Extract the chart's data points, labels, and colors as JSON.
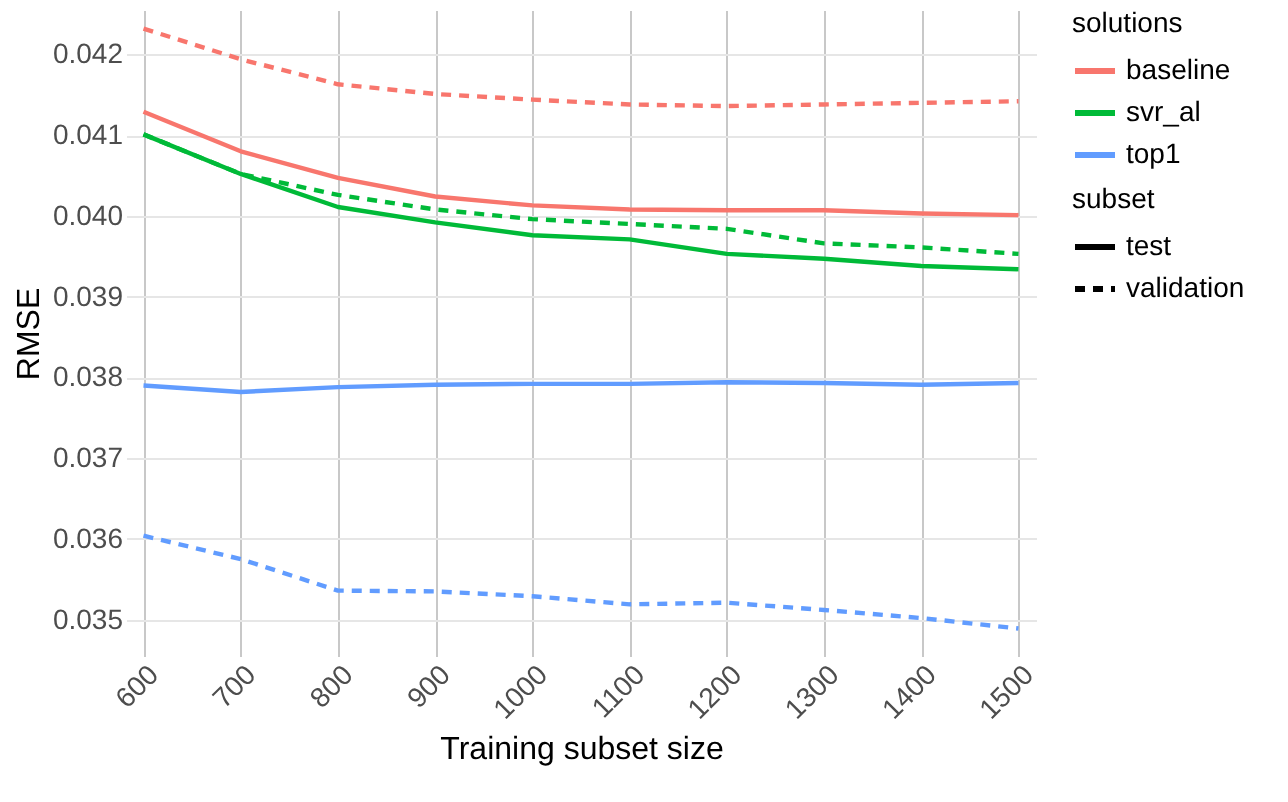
{
  "chart_data": {
    "type": "line",
    "xlabel": "Training subset size",
    "ylabel": "RMSE",
    "legend_title": [
      "solutions",
      "subset"
    ],
    "annotations": [
      "test",
      "validation"
    ],
    "legend": "right",
    "grid": true,
    "marker": "none",
    "x": [
      600,
      700,
      800,
      900,
      1000,
      1100,
      1200,
      1300,
      1400,
      1500
    ],
    "xlim": [
      582,
      1518
    ],
    "xticks": [
      600,
      700,
      800,
      900,
      1000,
      1100,
      1200,
      1300,
      1400,
      1500
    ],
    "ylim": [
      0.03455,
      0.04255
    ],
    "yticks": [
      0.035,
      0.036,
      0.037,
      0.038,
      0.039,
      {
        "value": 0.04,
        "label": "0.040"
      },
      0.041,
      0.042
    ],
    "series": [
      {
        "name": "baseline",
        "line_style": "solid",
        "color": "#f8766d",
        "values": [
          0.04129,
          0.0408,
          0.04047,
          0.04024,
          0.04013,
          0.04008,
          0.04007,
          0.04007,
          0.04003,
          0.04001
        ]
      },
      {
        "line_style": "dashed",
        "color": "#f8766d",
        "values": [
          0.04232,
          0.04194,
          0.04163,
          0.04151,
          0.04144,
          0.04138,
          0.04136,
          0.04138,
          0.0414,
          0.04142
        ]
      },
      {
        "name": "svr_al",
        "line_style": "solid",
        "color": "#00ba38",
        "values": [
          0.04101,
          0.04052,
          0.04011,
          0.03992,
          0.03976,
          0.03971,
          0.03953,
          0.03947,
          0.03938,
          0.03934
        ]
      },
      {
        "line_style": "dashed",
        "color": "#00ba38",
        "values": [
          0.04101,
          0.04052,
          0.04026,
          0.04008,
          0.03996,
          0.0399,
          0.03984,
          0.03966,
          0.03961,
          0.03953
        ]
      },
      {
        "name": "top1",
        "line_style": "solid",
        "color": "#619cff",
        "values": [
          0.0379,
          0.03782,
          0.03788,
          0.03791,
          0.03792,
          0.03792,
          0.03794,
          0.03793,
          0.03791,
          0.03793
        ]
      },
      {
        "line_style": "dashed",
        "color": "#619cff",
        "values": [
          0.03604,
          0.03575,
          0.03536,
          0.03535,
          0.03529,
          0.03519,
          0.03521,
          0.03512,
          0.03502,
          0.03489
        ]
      }
    ]
  }
}
